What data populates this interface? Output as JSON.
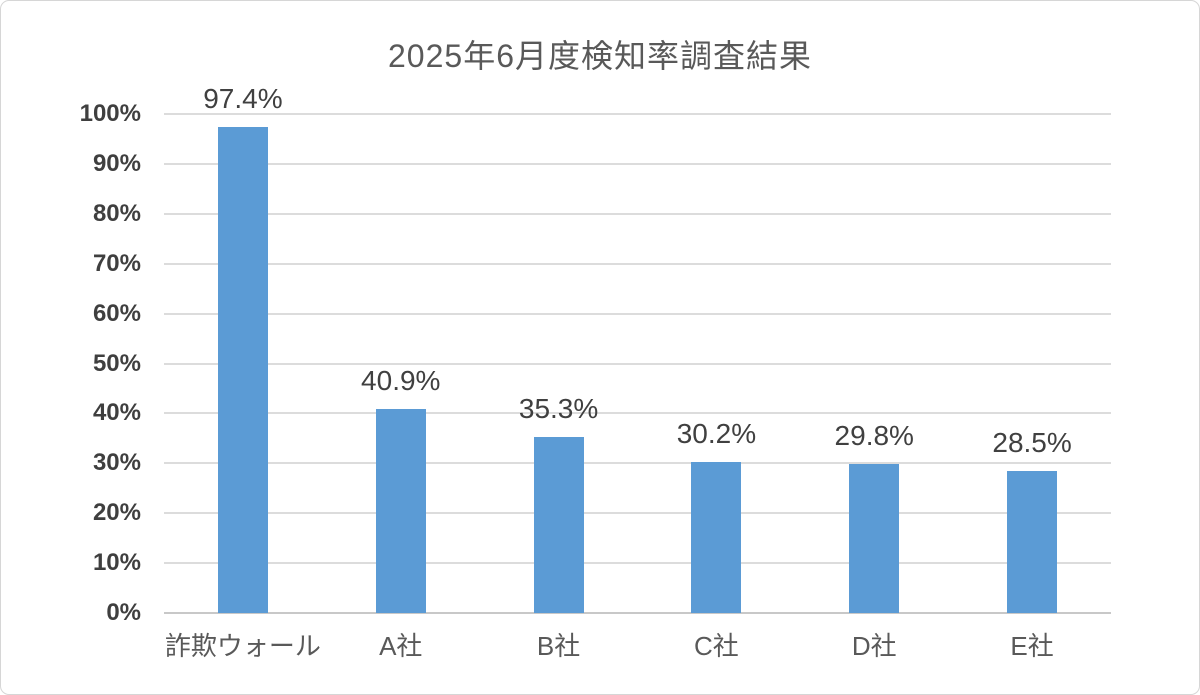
{
  "chart_data": {
    "type": "bar",
    "title": "2025年6月度検知率調査結果",
    "categories": [
      "詐欺ウォール",
      "A社",
      "B社",
      "C社",
      "D社",
      "E社"
    ],
    "values": [
      97.4,
      40.9,
      35.3,
      30.2,
      29.8,
      28.5
    ],
    "data_labels": [
      "97.4%",
      "40.9%",
      "35.3%",
      "30.2%",
      "29.8%",
      "28.5%"
    ],
    "y_ticks": [
      "0%",
      "10%",
      "20%",
      "30%",
      "40%",
      "50%",
      "60%",
      "70%",
      "80%",
      "90%",
      "100%"
    ],
    "ylim": [
      0,
      100
    ],
    "grid": true,
    "legend": "none",
    "xlabel": "",
    "ylabel": "",
    "colors": {
      "bar": "#5B9BD5",
      "gridline": "#DCDCDC",
      "axis_line": "#C8C8C8",
      "title_text": "#595959",
      "y_tick_text": "#3F3F3F",
      "x_tick_text": "#595959",
      "value_label_text": "#404040",
      "frame_border": "#D6D6D6",
      "background": "#FFFFFF"
    }
  }
}
